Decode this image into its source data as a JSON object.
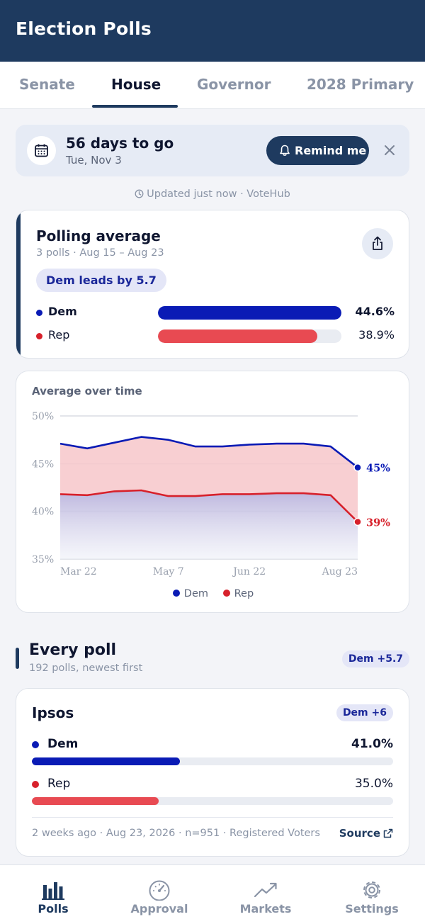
{
  "app": {
    "title": "Election Polls"
  },
  "tabs": [
    {
      "label": "Senate",
      "active": false
    },
    {
      "label": "House",
      "active": true
    },
    {
      "label": "Governor",
      "active": false
    },
    {
      "label": "2028 Primary",
      "active": false
    }
  ],
  "countdown": {
    "title": "56 days to go",
    "date": "Tue, Nov 3",
    "remind_label": "Remind me",
    "icon": "calendar-icon"
  },
  "updated": {
    "text": "Updated just now · VoteHub"
  },
  "polling_average": {
    "title": "Polling average",
    "subtitle": "3 polls · Aug 15 – Aug 23",
    "lead": "Dem leads by 5.7",
    "rows": [
      {
        "name": "Dem",
        "value": "44.6%",
        "fill_pct": 100,
        "color": "#0a1bb5"
      },
      {
        "name": "Rep",
        "value": "38.9%",
        "fill_pct": 87,
        "color": "#e84a52"
      }
    ]
  },
  "chart": {
    "title": "Average over time",
    "legend": [
      {
        "name": "Dem",
        "color": "#0a1bb5"
      },
      {
        "name": "Rep",
        "color": "#d7212b"
      }
    ]
  },
  "chart_data": {
    "type": "line",
    "title": "Average over time",
    "x": [
      "Mar 22",
      "Apr 1",
      "Apr 12",
      "Apr 24",
      "May 7",
      "May 21",
      "Jun 4",
      "Jun 22",
      "Jul 10",
      "Jul 28",
      "Aug 14",
      "Aug 23"
    ],
    "xticks": [
      "Mar 22",
      "May 7",
      "Jun 22",
      "Aug 23"
    ],
    "yticks": [
      "50%",
      "45%",
      "40%",
      "35%"
    ],
    "ylim": [
      35,
      50
    ],
    "grid": true,
    "series": [
      {
        "name": "Dem",
        "color": "#0a1bb5",
        "values": [
          47.1,
          46.6,
          47.2,
          47.8,
          47.5,
          46.8,
          46.8,
          47.0,
          47.1,
          47.1,
          46.8,
          44.6
        ],
        "end_label": "45%"
      },
      {
        "name": "Rep",
        "color": "#d7212b",
        "values": [
          41.8,
          41.7,
          42.1,
          42.2,
          41.6,
          41.6,
          41.8,
          41.8,
          41.9,
          41.9,
          41.7,
          38.9
        ],
        "end_label": "39%"
      }
    ]
  },
  "every_poll": {
    "title": "Every poll",
    "subtitle": "192 polls, newest first",
    "badge": "Dem +5.7"
  },
  "poll": {
    "pollster": "Ipsos",
    "badge": "Dem +6",
    "rows": [
      {
        "name": "Dem",
        "value": "41.0%",
        "fill_pct": 41,
        "color": "#0a1bb5"
      },
      {
        "name": "Rep",
        "value": "35.0%",
        "fill_pct": 35,
        "color": "#e84a52"
      }
    ],
    "meta": "2 weeks ago  ·  Aug 23, 2026  ·  n=951  ·  Registered Voters",
    "source_label": "Source"
  },
  "nav": [
    {
      "label": "Polls",
      "icon": "bar-chart-icon",
      "active": true
    },
    {
      "label": "Approval",
      "icon": "gauge-icon",
      "active": false
    },
    {
      "label": "Markets",
      "icon": "trend-up-icon",
      "active": false
    },
    {
      "label": "Settings",
      "icon": "gear-icon",
      "active": false
    }
  ]
}
